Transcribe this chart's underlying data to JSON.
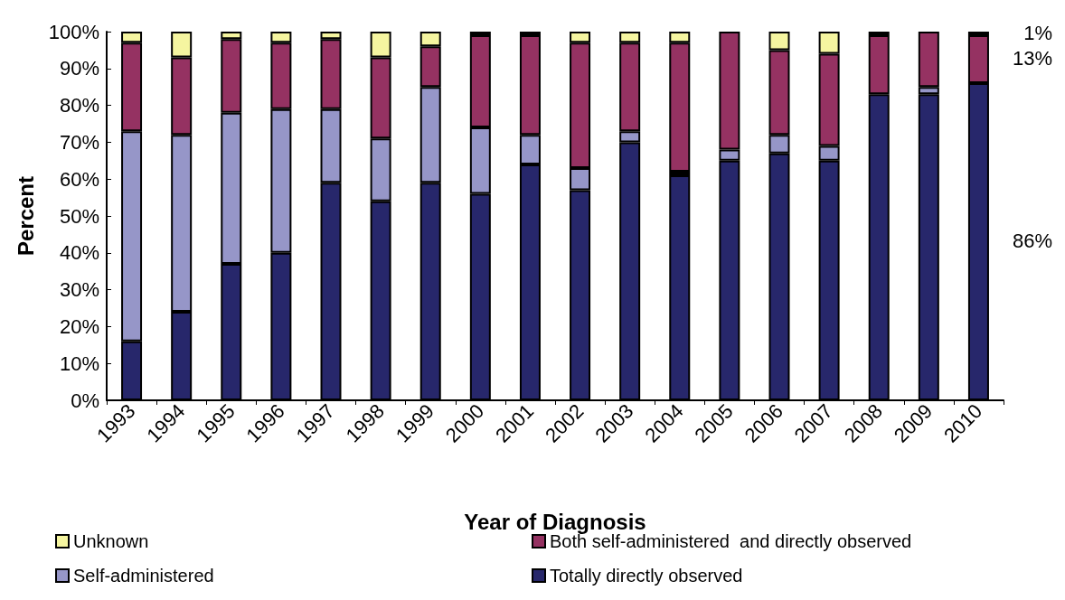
{
  "chart_data": {
    "type": "bar",
    "stacked": true,
    "xlabel": "Year of Diagnosis",
    "ylabel": "Percent",
    "categories": [
      "1993",
      "1994",
      "1995",
      "1996",
      "1997",
      "1998",
      "1999",
      "2000",
      "2001",
      "2002",
      "2003",
      "2004",
      "2005",
      "2006",
      "2007",
      "2008",
      "2009",
      "2010"
    ],
    "series": [
      {
        "name": "Totally directly observed",
        "color": "#27276b",
        "values": [
          16,
          24,
          37,
          40,
          59,
          54,
          59,
          56,
          64,
          57,
          70,
          61,
          65,
          67,
          65,
          83,
          83,
          86
        ]
      },
      {
        "name": "Self-administered",
        "color": "#9696c8",
        "values": [
          57,
          48,
          41,
          39,
          20,
          17,
          26,
          18,
          8,
          6,
          3,
          1,
          3,
          5,
          4,
          0,
          2,
          0
        ]
      },
      {
        "name": "Both self-administered  and directly observed",
        "color": "#953262",
        "values": [
          24,
          21,
          20,
          18,
          19,
          22,
          11,
          25,
          27,
          34,
          24,
          35,
          32,
          23,
          25,
          16,
          15,
          13
        ]
      },
      {
        "name": "Unknown",
        "color": "#f5f5a0",
        "values": [
          3,
          7,
          2,
          3,
          2,
          7,
          4,
          1,
          1,
          3,
          3,
          3,
          0,
          5,
          6,
          1,
          0,
          1
        ]
      }
    ],
    "ylim": [
      0,
      100
    ],
    "yticks": [
      {
        "value": 0,
        "label": "0%"
      },
      {
        "value": 10,
        "label": "10%"
      },
      {
        "value": 20,
        "label": "20%"
      },
      {
        "value": 30,
        "label": "30%"
      },
      {
        "value": 40,
        "label": "40%"
      },
      {
        "value": 50,
        "label": "50%"
      },
      {
        "value": 60,
        "label": "60%"
      },
      {
        "value": 70,
        "label": "70%"
      },
      {
        "value": 80,
        "label": "80%"
      },
      {
        "value": 90,
        "label": "90%"
      },
      {
        "value": 100,
        "label": "100%"
      }
    ],
    "annotations": [
      "1%",
      "13%",
      "86%"
    ],
    "grid": false,
    "legend": "bottom"
  }
}
